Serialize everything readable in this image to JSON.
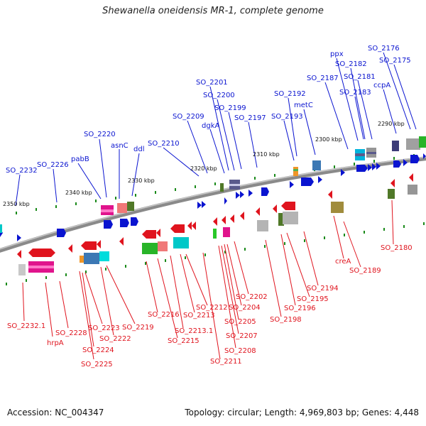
{
  "header": {
    "title": "Shewanella oneidensis MR-1, complete genome"
  },
  "footer": {
    "accession": "Accession: NC_004347",
    "topology": "Topology: circular; Length: 4,969,803 bp; Genes: 4,448"
  },
  "scale_labels": [
    "2350 kbp",
    "2340 kbp",
    "2330 kbp",
    "2320 kbp",
    "2310 kbp",
    "2300 kbp",
    "2290 kbp"
  ],
  "forward_genes": [
    "SO_2232",
    "SO_2226",
    "pabB",
    "SO_2220",
    "asnC",
    "ddl",
    "SO_2210",
    "SO_2209",
    "SO_2201",
    "SO_2200",
    "dgkA",
    "SO_2199",
    "SO_2197",
    "SO_2193",
    "SO_2192",
    "metC",
    "SO_2187",
    "ppx",
    "SO_2182",
    "SO_2181",
    "SO_2183",
    "SO_2176",
    "SO_2175",
    "ccpA"
  ],
  "reverse_genes": [
    "SO_2232.1",
    "hrpA",
    "SO_2228",
    "SO_2225",
    "SO_2224",
    "SO_2223",
    "SO_2222",
    "SO_2219",
    "SO_2216",
    "SO_2215",
    "SO_2213.1",
    "SO_2213",
    "SO_2212",
    "SO_2211",
    "SO_2208",
    "SO_2207",
    "SO_2205",
    "SO_2204",
    "SO_2202",
    "SO_2198",
    "SO_2196",
    "SO_2195",
    "SO_2194",
    "creA",
    "SO_2189",
    "SO_2180"
  ],
  "colors": {
    "forward": "#0a14d0",
    "reverse": "#e0141e",
    "backbone": "#8a8a8a",
    "tick": "#1a8a1a"
  }
}
